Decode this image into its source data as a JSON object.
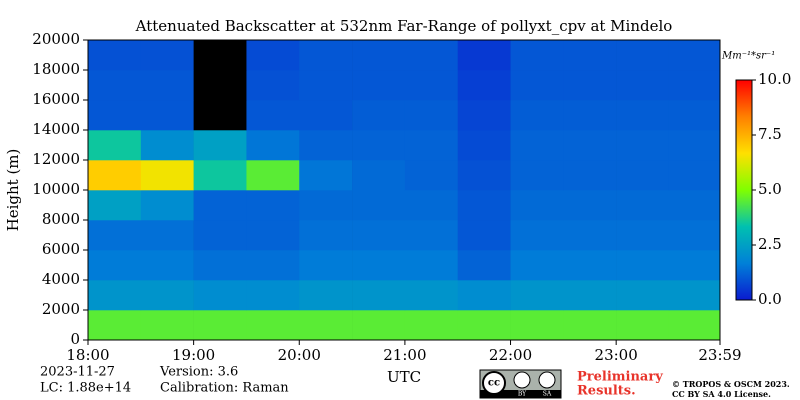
{
  "chart_data": {
    "type": "heatmap",
    "title": "Attenuated Backscatter at 532nm Far-Range of pollyxt_cpv at Mindelo",
    "xlabel": "UTC",
    "ylabel": "Height (m)",
    "xlim": [
      18,
      23.983
    ],
    "xticks": [
      {
        "value": 18,
        "label": "18:00"
      },
      {
        "value": 19,
        "label": "19:00"
      },
      {
        "value": 20,
        "label": "20:00"
      },
      {
        "value": 21,
        "label": "21:00"
      },
      {
        "value": 22,
        "label": "22:00"
      },
      {
        "value": 23,
        "label": "23:00"
      },
      {
        "value": 23.983,
        "label": "23:59"
      }
    ],
    "ylim": [
      0,
      20000
    ],
    "yticks": [
      0,
      2000,
      4000,
      6000,
      8000,
      10000,
      12000,
      14000,
      16000,
      18000,
      20000
    ],
    "xbins": [
      18,
      18.5,
      19,
      19.5,
      20,
      20.5,
      21,
      21.5,
      22,
      22.5,
      23,
      23.5,
      23.983
    ],
    "ybins": [
      0,
      2000,
      4000,
      6000,
      8000,
      10000,
      12000,
      14000,
      16000,
      18000,
      20000
    ],
    "z": [
      [
        4.5,
        4.5,
        4.5,
        4.5,
        4.5,
        4.5,
        4.5,
        4.5,
        4.5,
        4.5,
        4.5,
        4.5
      ],
      [
        2.2,
        2.2,
        2.0,
        2.0,
        2.2,
        2.2,
        2.2,
        2.0,
        2.2,
        2.2,
        2.2,
        2.2
      ],
      [
        1.6,
        1.6,
        1.4,
        1.4,
        1.6,
        1.6,
        1.6,
        1.2,
        1.6,
        1.6,
        1.6,
        1.6
      ],
      [
        1.4,
        1.4,
        1.2,
        1.2,
        1.4,
        1.4,
        1.4,
        1.0,
        1.4,
        1.4,
        1.4,
        1.4
      ],
      [
        2.5,
        2.0,
        1.2,
        1.2,
        1.3,
        1.3,
        1.3,
        1.0,
        1.3,
        1.3,
        1.3,
        1.3
      ],
      [
        7.0,
        6.5,
        3.5,
        4.5,
        1.5,
        1.3,
        1.2,
        0.9,
        1.2,
        1.2,
        1.2,
        1.2
      ],
      [
        3.5,
        2.0,
        2.5,
        1.5,
        1.2,
        1.2,
        1.2,
        0.8,
        1.2,
        1.2,
        1.2,
        1.2
      ],
      [
        1.0,
        1.0,
        null,
        1.0,
        1.0,
        1.1,
        1.1,
        0.7,
        1.1,
        1.1,
        1.1,
        1.1
      ],
      [
        1.0,
        1.0,
        null,
        0.9,
        1.0,
        1.0,
        1.0,
        0.6,
        1.0,
        1.0,
        1.0,
        1.0
      ],
      [
        0.9,
        0.9,
        null,
        0.8,
        1.0,
        1.0,
        1.0,
        0.5,
        1.0,
        1.0,
        1.0,
        1.0
      ]
    ],
    "colormap": [
      "#0a1ad0",
      "#0080d8",
      "#00c0b0",
      "#80ff00",
      "#ffe000",
      "#ff8000",
      "#ff0000"
    ],
    "null_color": "#000000",
    "clim": [
      0,
      10
    ],
    "cticks": [
      {
        "value": 0,
        "label": "0.0"
      },
      {
        "value": 2.5,
        "label": "2.5"
      },
      {
        "value": 5,
        "label": "5.0"
      },
      {
        "value": 7.5,
        "label": "7.5"
      },
      {
        "value": 10,
        "label": "10.0"
      }
    ],
    "clabel": "Mm⁻¹*sr⁻¹",
    "date": "2023-11-27",
    "lc": "LC: 1.88e+14",
    "version": "Version: 3.6",
    "calibration": "Calibration: Raman",
    "badge": [
      "BY",
      "SA"
    ],
    "status": [
      "Preliminary",
      "Results."
    ],
    "copyright": [
      "© TROPOS & OSCM 2023.",
      "CC BY SA 4.0 License."
    ]
  }
}
